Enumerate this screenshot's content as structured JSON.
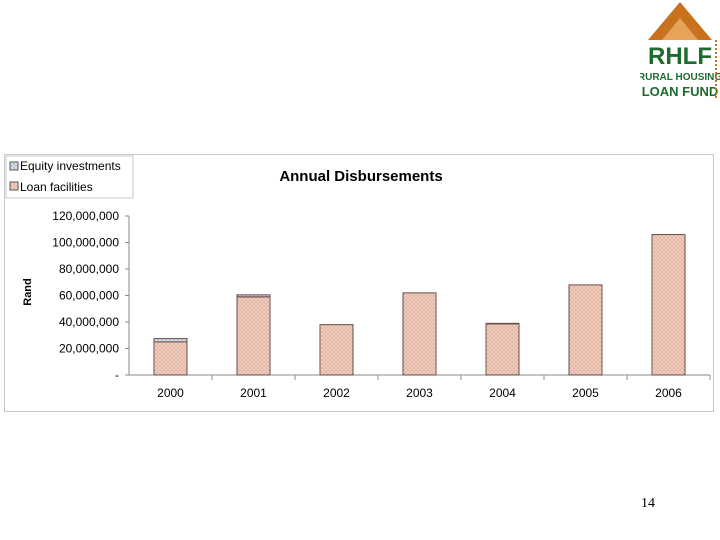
{
  "logo": {
    "name": "RHLF",
    "line1": "RURAL HOUSING",
    "line2": "LOAN FUND"
  },
  "page_number": "14",
  "colors": {
    "loan_fill": "#f2cbbb",
    "loan_stroke": "#8c6b60",
    "equity_fill": "#d3dcec",
    "logo_green": "#1e6b2e",
    "logo_orange": "#c8721e"
  },
  "chart_data": {
    "type": "bar",
    "stacked": true,
    "title": "Annual Disbursements",
    "xlabel": "",
    "ylabel": "Rand",
    "categories": [
      "2000",
      "2001",
      "2002",
      "2003",
      "2004",
      "2005",
      "2006"
    ],
    "series": [
      {
        "name": "Equity investments",
        "values": [
          2500000,
          1500000,
          0,
          0,
          500000,
          0,
          0
        ]
      },
      {
        "name": "Loan facilities",
        "values": [
          25000000,
          59000000,
          38000000,
          62000000,
          38500000,
          68000000,
          106000000
        ]
      }
    ],
    "ylim": [
      0,
      120000000
    ],
    "yticks": [
      0,
      20000000,
      40000000,
      60000000,
      80000000,
      100000000,
      120000000
    ],
    "ytick_labels": [
      "-",
      "20,000,000",
      "40,000,000",
      "60,000,000",
      "80,000,000",
      "100,000,000",
      "120,000,000"
    ],
    "legend_position": "top-left",
    "grid": false
  }
}
